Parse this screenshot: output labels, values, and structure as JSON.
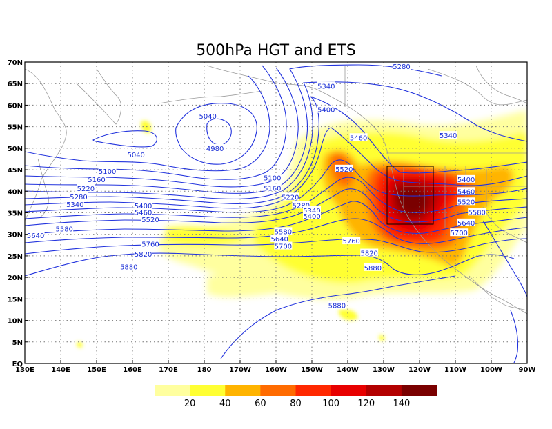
{
  "title": "500hPa HGT and ETS",
  "map": {
    "lon_range": [
      130,
      270
    ],
    "lat_range": [
      0,
      70
    ],
    "x_ticks": [
      "130E",
      "140E",
      "150E",
      "160E",
      "170E",
      "180",
      "170W",
      "160W",
      "150W",
      "140W",
      "130W",
      "120W",
      "110W",
      "100W",
      "90W"
    ],
    "y_ticks": [
      "EQ",
      "5N",
      "10N",
      "15N",
      "20N",
      "25N",
      "30N",
      "35N",
      "40N",
      "45N",
      "50N",
      "55N",
      "60N",
      "65N",
      "70N"
    ],
    "contour_color": "#2233dd",
    "coast_color": "#9a9a9a"
  },
  "contour_labels": [
    {
      "text": "5280",
      "lon": 235,
      "lat": 69
    },
    {
      "text": "5340",
      "lon": 214,
      "lat": 64.5
    },
    {
      "text": "5400",
      "lon": 214,
      "lat": 59
    },
    {
      "text": "5340",
      "lon": 248,
      "lat": 53
    },
    {
      "text": "5460",
      "lon": 223,
      "lat": 52.5
    },
    {
      "text": "5040",
      "lon": 181,
      "lat": 57.5
    },
    {
      "text": "4980",
      "lon": 183,
      "lat": 50
    },
    {
      "text": "5040",
      "lon": 161,
      "lat": 48.5
    },
    {
      "text": "5100",
      "lon": 153,
      "lat": 44.7
    },
    {
      "text": "5160",
      "lon": 150,
      "lat": 42.8
    },
    {
      "text": "5220",
      "lon": 147,
      "lat": 40.7
    },
    {
      "text": "5280",
      "lon": 145,
      "lat": 38.8
    },
    {
      "text": "5340",
      "lon": 144,
      "lat": 37
    },
    {
      "text": "5100",
      "lon": 199,
      "lat": 43.2
    },
    {
      "text": "5160",
      "lon": 199,
      "lat": 40.8
    },
    {
      "text": "5220",
      "lon": 204,
      "lat": 38.7
    },
    {
      "text": "5280",
      "lon": 207,
      "lat": 36.8
    },
    {
      "text": "5340",
      "lon": 210,
      "lat": 35.6
    },
    {
      "text": "5400",
      "lon": 210,
      "lat": 34.3
    },
    {
      "text": "5400",
      "lon": 163,
      "lat": 36.7
    },
    {
      "text": "5460",
      "lon": 163,
      "lat": 35.2
    },
    {
      "text": "5520",
      "lon": 165,
      "lat": 33.5
    },
    {
      "text": "5580",
      "lon": 141,
      "lat": 31.3
    },
    {
      "text": "5640",
      "lon": 133,
      "lat": 29.8
    },
    {
      "text": "5580",
      "lon": 202,
      "lat": 30.7
    },
    {
      "text": "5640",
      "lon": 201,
      "lat": 29
    },
    {
      "text": "5700",
      "lon": 202,
      "lat": 27.3
    },
    {
      "text": "5760",
      "lon": 165,
      "lat": 27.8
    },
    {
      "text": "5820",
      "lon": 163,
      "lat": 25.5
    },
    {
      "text": "5880",
      "lon": 159,
      "lat": 22.5
    },
    {
      "text": "5520",
      "lon": 219,
      "lat": 45.2
    },
    {
      "text": "5760",
      "lon": 221,
      "lat": 28.5
    },
    {
      "text": "5820",
      "lon": 226,
      "lat": 25.7
    },
    {
      "text": "5880",
      "lon": 227,
      "lat": 22.3
    },
    {
      "text": "5880",
      "lon": 217,
      "lat": 13.5
    },
    {
      "text": "5400",
      "lon": 253,
      "lat": 42.8
    },
    {
      "text": "5460",
      "lon": 253,
      "lat": 40
    },
    {
      "text": "5520",
      "lon": 253,
      "lat": 37.6
    },
    {
      "text": "5580",
      "lon": 256,
      "lat": 35.2
    },
    {
      "text": "5640",
      "lon": 253,
      "lat": 32.7
    },
    {
      "text": "5700",
      "lon": 251,
      "lat": 30.4
    }
  ],
  "colorbar": {
    "colors": [
      "#ffff9f",
      "#ffff33",
      "#ffb400",
      "#ff6b00",
      "#ff2800",
      "#e80000",
      "#b30000",
      "#7a0000"
    ],
    "labels": [
      "20",
      "40",
      "60",
      "80",
      "100",
      "120",
      "140"
    ]
  }
}
